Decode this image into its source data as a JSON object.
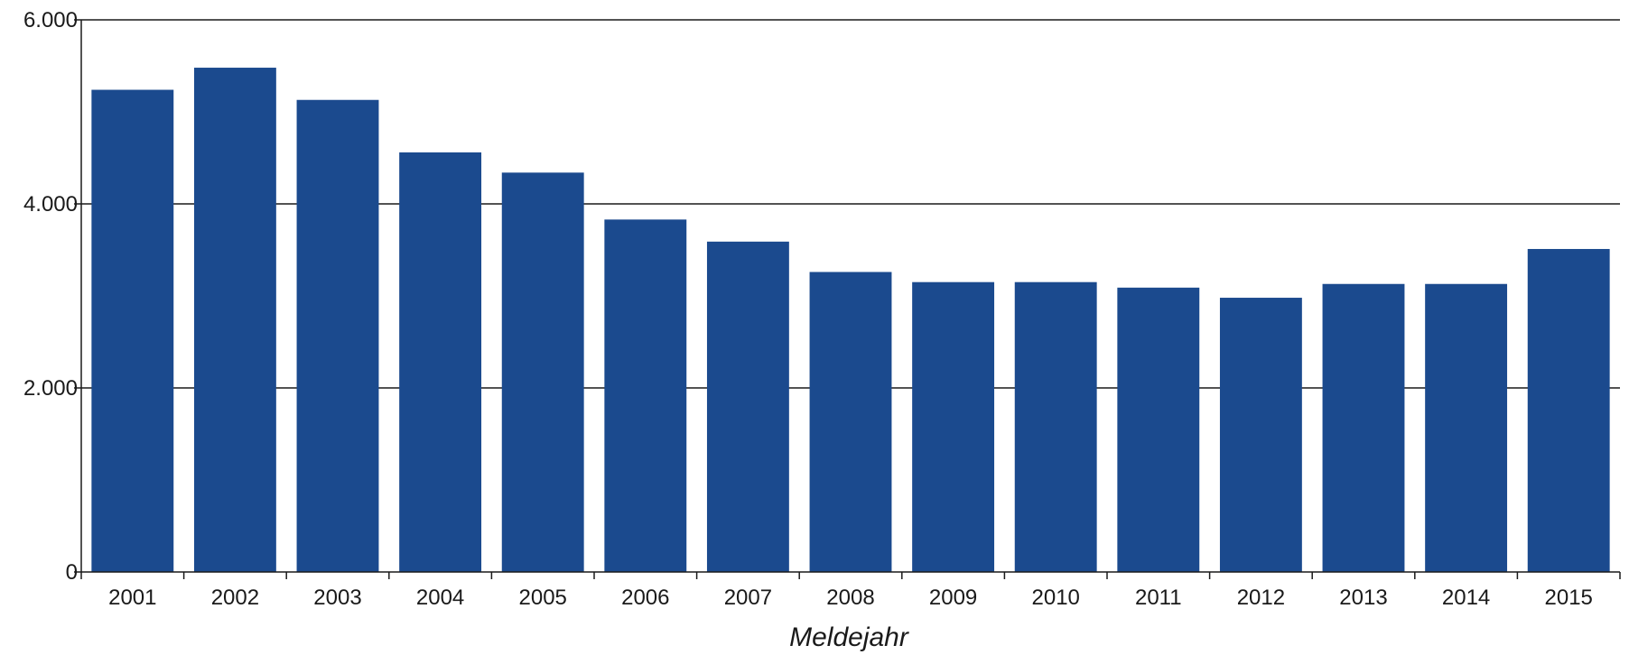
{
  "chart_data": {
    "type": "bar",
    "title": "",
    "xlabel": "Meldejahr",
    "ylabel": "",
    "categories": [
      "2001",
      "2002",
      "2003",
      "2004",
      "2005",
      "2006",
      "2007",
      "2008",
      "2009",
      "2010",
      "2011",
      "2012",
      "2013",
      "2014",
      "2015"
    ],
    "series": [
      {
        "values": [
          5240,
          5480,
          5130,
          4560,
          4340,
          3830,
          3590,
          3260,
          3150,
          3150,
          3090,
          2980,
          3130,
          3130,
          3510
        ],
        "color": "#1b4a8e"
      }
    ],
    "ylim": [
      0,
      6000
    ],
    "yticks": [
      0,
      2000,
      4000,
      6000
    ],
    "ytick_labels": [
      "0",
      "2.000",
      "4.000",
      "6.000"
    ],
    "grid": true,
    "legend": "none"
  }
}
